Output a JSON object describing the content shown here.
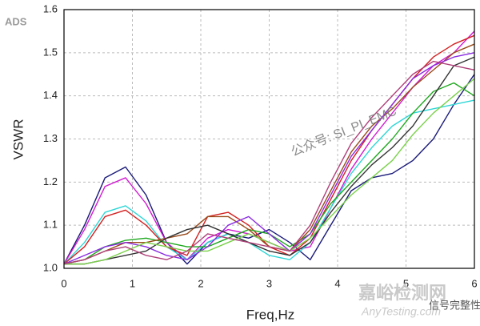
{
  "chart_data": {
    "type": "line",
    "x_label": "Freq,Hz",
    "y_label": "VSWR",
    "annotations": [
      "ADS",
      "公众号: SI_PI_EMC",
      "嘉峪检测网",
      "AnyTesting.com",
      "信号完整性"
    ],
    "xlim": [
      0,
      6
    ],
    "ylim": [
      1.0,
      1.6
    ],
    "xticks": [
      0,
      1,
      2,
      3,
      4,
      5,
      6
    ],
    "yticks": [
      {
        "value": 1.0,
        "label": "1.0"
      },
      1.1,
      1.2,
      1.3,
      1.4,
      1.5,
      1.6
    ],
    "grid": true,
    "x": [
      0,
      0.3,
      0.6,
      0.9,
      1.2,
      1.5,
      1.8,
      2.1,
      2.4,
      2.7,
      3.0,
      3.3,
      3.6,
      3.9,
      4.2,
      4.5,
      4.8,
      5.1,
      5.4,
      5.7,
      6.0
    ],
    "series": [
      {
        "color": "#1a1a7a",
        "values": [
          1.01,
          1.1,
          1.21,
          1.235,
          1.17,
          1.06,
          1.01,
          1.06,
          1.08,
          1.07,
          1.09,
          1.06,
          1.02,
          1.1,
          1.18,
          1.21,
          1.22,
          1.25,
          1.3,
          1.38,
          1.45
        ]
      },
      {
        "color": "#d21ad2",
        "values": [
          1.01,
          1.09,
          1.19,
          1.21,
          1.15,
          1.06,
          1.02,
          1.07,
          1.09,
          1.08,
          1.06,
          1.04,
          1.05,
          1.14,
          1.23,
          1.3,
          1.36,
          1.42,
          1.47,
          1.5,
          1.55
        ]
      },
      {
        "color": "#2fd6d6",
        "values": [
          1.01,
          1.06,
          1.13,
          1.145,
          1.11,
          1.05,
          1.02,
          1.06,
          1.08,
          1.06,
          1.03,
          1.02,
          1.06,
          1.14,
          1.22,
          1.28,
          1.33,
          1.36,
          1.37,
          1.38,
          1.39
        ]
      },
      {
        "color": "#d42020",
        "values": [
          1.01,
          1.05,
          1.12,
          1.135,
          1.1,
          1.05,
          1.03,
          1.12,
          1.13,
          1.1,
          1.05,
          1.03,
          1.07,
          1.16,
          1.25,
          1.32,
          1.38,
          1.44,
          1.49,
          1.52,
          1.54
        ]
      },
      {
        "color": "#1fa81f",
        "values": [
          1.01,
          1.02,
          1.05,
          1.065,
          1.07,
          1.06,
          1.05,
          1.05,
          1.07,
          1.09,
          1.08,
          1.05,
          1.08,
          1.15,
          1.2,
          1.25,
          1.3,
          1.36,
          1.41,
          1.43,
          1.4
        ]
      },
      {
        "color": "#9a4a1a",
        "values": [
          1.01,
          1.02,
          1.04,
          1.06,
          1.06,
          1.07,
          1.08,
          1.12,
          1.12,
          1.09,
          1.05,
          1.04,
          1.09,
          1.18,
          1.27,
          1.33,
          1.37,
          1.42,
          1.46,
          1.5,
          1.52
        ]
      },
      {
        "color": "#8a2be2",
        "values": [
          1.01,
          1.03,
          1.05,
          1.06,
          1.05,
          1.03,
          1.02,
          1.05,
          1.1,
          1.12,
          1.08,
          1.04,
          1.08,
          1.17,
          1.26,
          1.32,
          1.38,
          1.44,
          1.47,
          1.49,
          1.5
        ]
      },
      {
        "color": "#333333",
        "values": [
          1.01,
          1.01,
          1.02,
          1.03,
          1.04,
          1.07,
          1.09,
          1.1,
          1.08,
          1.06,
          1.04,
          1.03,
          1.06,
          1.13,
          1.19,
          1.24,
          1.28,
          1.33,
          1.4,
          1.47,
          1.49
        ]
      },
      {
        "color": "#7ad14a",
        "values": [
          1.01,
          1.01,
          1.02,
          1.04,
          1.06,
          1.05,
          1.04,
          1.04,
          1.06,
          1.08,
          1.06,
          1.04,
          1.07,
          1.12,
          1.17,
          1.21,
          1.25,
          1.31,
          1.36,
          1.4,
          1.44
        ]
      },
      {
        "color": "#b0407a",
        "values": [
          1.01,
          1.02,
          1.04,
          1.05,
          1.03,
          1.02,
          1.04,
          1.08,
          1.07,
          1.06,
          1.05,
          1.04,
          1.1,
          1.2,
          1.29,
          1.35,
          1.4,
          1.45,
          1.48,
          1.47,
          1.46
        ]
      }
    ]
  }
}
